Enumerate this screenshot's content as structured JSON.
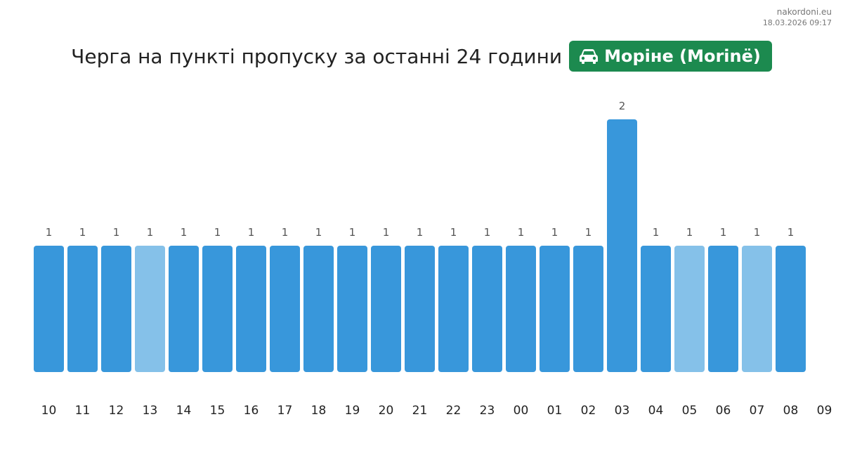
{
  "source": {
    "site": "nakordoni.eu",
    "timestamp": "18.03.2026 09:17"
  },
  "header": {
    "title": "Черга на пункті пропуску за останні 24 години",
    "badge_icon": "car-icon",
    "badge_label": "Моріне (Morinë)",
    "badge_color": "#1c8a4f"
  },
  "chart_data": {
    "type": "bar",
    "categories": [
      "10",
      "11",
      "12",
      "13",
      "14",
      "15",
      "16",
      "17",
      "18",
      "19",
      "20",
      "21",
      "22",
      "23",
      "00",
      "01",
      "02",
      "03",
      "04",
      "05",
      "06",
      "07",
      "08"
    ],
    "values": [
      1,
      1,
      1,
      1,
      1,
      1,
      1,
      1,
      1,
      1,
      1,
      1,
      1,
      1,
      1,
      1,
      1,
      2,
      1,
      1,
      1,
      1,
      1
    ],
    "faded": [
      false,
      false,
      false,
      true,
      false,
      false,
      false,
      false,
      false,
      false,
      false,
      false,
      false,
      false,
      false,
      false,
      false,
      false,
      false,
      true,
      false,
      true,
      false
    ],
    "extra_tick": "09",
    "title": "",
    "xlabel": "",
    "ylabel": "",
    "ylim": [
      0,
      2
    ],
    "grid": false,
    "colors": {
      "bar": "#3897db",
      "bar_faded": "#85c1e9",
      "value_label": "#555555",
      "tick_label": "#222222"
    }
  }
}
